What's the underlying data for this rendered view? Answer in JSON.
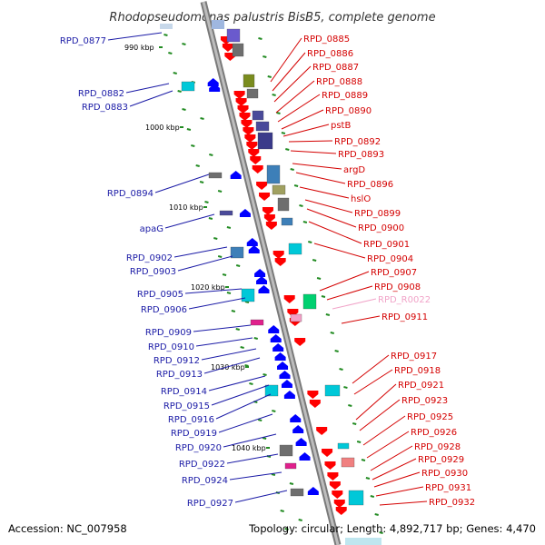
{
  "title": "Rhodopseudomonas palustris BisB5, complete genome",
  "footer": {
    "accession": "Accession: NC_007958",
    "topology": "Topology: circular; Length: 4,892,717 bp; Genes: 4,470"
  },
  "kbp_ticks": [
    "990 kbp",
    "1000 kbp",
    "1010 kbp",
    "1020 kbp",
    "1030 kbp",
    "1040 kbp"
  ],
  "left_genes": [
    "RPD_0877",
    "RPD_0882",
    "RPD_0883",
    "RPD_0894",
    "apaG",
    "RPD_0902",
    "RPD_0903",
    "RPD_0905",
    "RPD_0906",
    "RPD_0909",
    "RPD_0910",
    "RPD_0912",
    "RPD_0913",
    "RPD_0914",
    "RPD_0915",
    "RPD_0916",
    "RPD_0919",
    "RPD_0920",
    "RPD_0922",
    "RPD_0924",
    "RPD_0927"
  ],
  "right_genes": [
    "RPD_0885",
    "RPD_0886",
    "RPD_0887",
    "RPD_0888",
    "RPD_0889",
    "RPD_0890",
    "pstB",
    "RPD_0892",
    "RPD_0893",
    "argD",
    "RPD_0896",
    "hslO",
    "RPD_0899",
    "RPD_0900",
    "RPD_0901",
    "RPD_0904",
    "RPD_0907",
    "RPD_0908",
    "RPD_R0022",
    "RPD_0911",
    "RPD_0917",
    "RPD_0918",
    "RPD_0921",
    "RPD_0923",
    "RPD_0925",
    "RPD_0926",
    "RPD_0928",
    "RPD_0929",
    "RPD_0930",
    "RPD_0931",
    "RPD_0932"
  ],
  "colors": {
    "forward_strand": "#ff0000",
    "reverse_strand": "#0000ff",
    "left_label": "#1a1aa6",
    "right_label": "#d40000",
    "rna_label": "#f1a3c8",
    "backbone": "#9a9a9a",
    "tick": "#228b22"
  }
}
